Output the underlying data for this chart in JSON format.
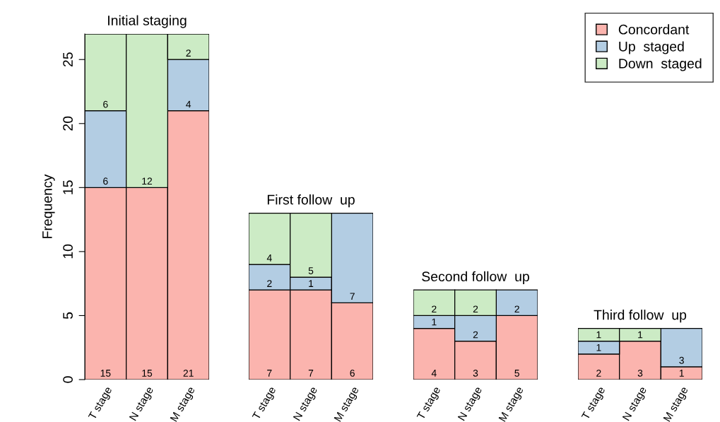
{
  "chart_data": [
    {
      "type": "bar",
      "stacked": true,
      "categories": [
        "T stage",
        "N stage",
        "M stage"
      ],
      "ylabel": "Frequency",
      "ylim": [
        0,
        27
      ],
      "yticks": [
        0,
        5,
        10,
        15,
        20,
        25
      ],
      "legend": "top right",
      "annotations": [
        "Initial staging"
      ],
      "series": [
        {
          "name": "Concordant",
          "color": "#fbb4ae",
          "values": [
            15,
            15,
            21
          ],
          "value_labels": [
            "15",
            "15",
            "21"
          ]
        },
        {
          "name": "Up  staged",
          "color": "#b3cde3",
          "values": [
            6,
            0,
            4
          ],
          "value_labels": [
            "6",
            null,
            "4"
          ]
        },
        {
          "name": "Down  staged",
          "color": "#ccebc5",
          "values": [
            6,
            12,
            2
          ],
          "value_labels": [
            "6",
            "12",
            "2"
          ]
        }
      ]
    },
    {
      "type": "bar",
      "stacked": true,
      "categories": [
        "T stage",
        "N stage",
        "M stage"
      ],
      "tick_labels": "x",
      "annotations": [
        "First follow  up"
      ],
      "series": [
        {
          "color": "#fbb4ae",
          "values": [
            7,
            7,
            6
          ],
          "value_labels": [
            "7",
            "7",
            "6"
          ]
        },
        {
          "color": "#b3cde3",
          "values": [
            2,
            1,
            7
          ],
          "value_labels": [
            "2",
            "1",
            "7"
          ]
        },
        {
          "color": "#ccebc5",
          "values": [
            4,
            5,
            0
          ],
          "value_labels": [
            "4",
            "5",
            null
          ]
        }
      ]
    },
    {
      "type": "bar",
      "stacked": true,
      "categories": [
        "T stage",
        "N stage",
        "M stage"
      ],
      "tick_labels": "x",
      "annotations": [
        "Second follow  up"
      ],
      "series": [
        {
          "color": "#fbb4ae",
          "values": [
            4,
            3,
            5
          ],
          "value_labels": [
            "4",
            "3",
            "5"
          ]
        },
        {
          "color": "#b3cde3",
          "values": [
            1,
            2,
            2
          ],
          "value_labels": [
            "1",
            "2",
            "2"
          ]
        },
        {
          "color": "#ccebc5",
          "values": [
            2,
            2,
            0
          ],
          "value_labels": [
            "2",
            "2",
            null
          ]
        }
      ]
    },
    {
      "type": "bar",
      "stacked": true,
      "categories": [
        "T stage",
        "N stage",
        "M stage"
      ],
      "tick_labels": "x",
      "annotations": [
        "Third follow  up"
      ],
      "series": [
        {
          "color": "#fbb4ae",
          "values": [
            2,
            3,
            1
          ],
          "value_labels": [
            "2",
            "3",
            "1"
          ]
        },
        {
          "color": "#b3cde3",
          "values": [
            1,
            0,
            3
          ],
          "value_labels": [
            "1",
            null,
            "3"
          ]
        },
        {
          "color": "#ccebc5",
          "values": [
            1,
            1,
            0
          ],
          "value_labels": [
            "1",
            "1",
            null
          ]
        }
      ]
    }
  ]
}
